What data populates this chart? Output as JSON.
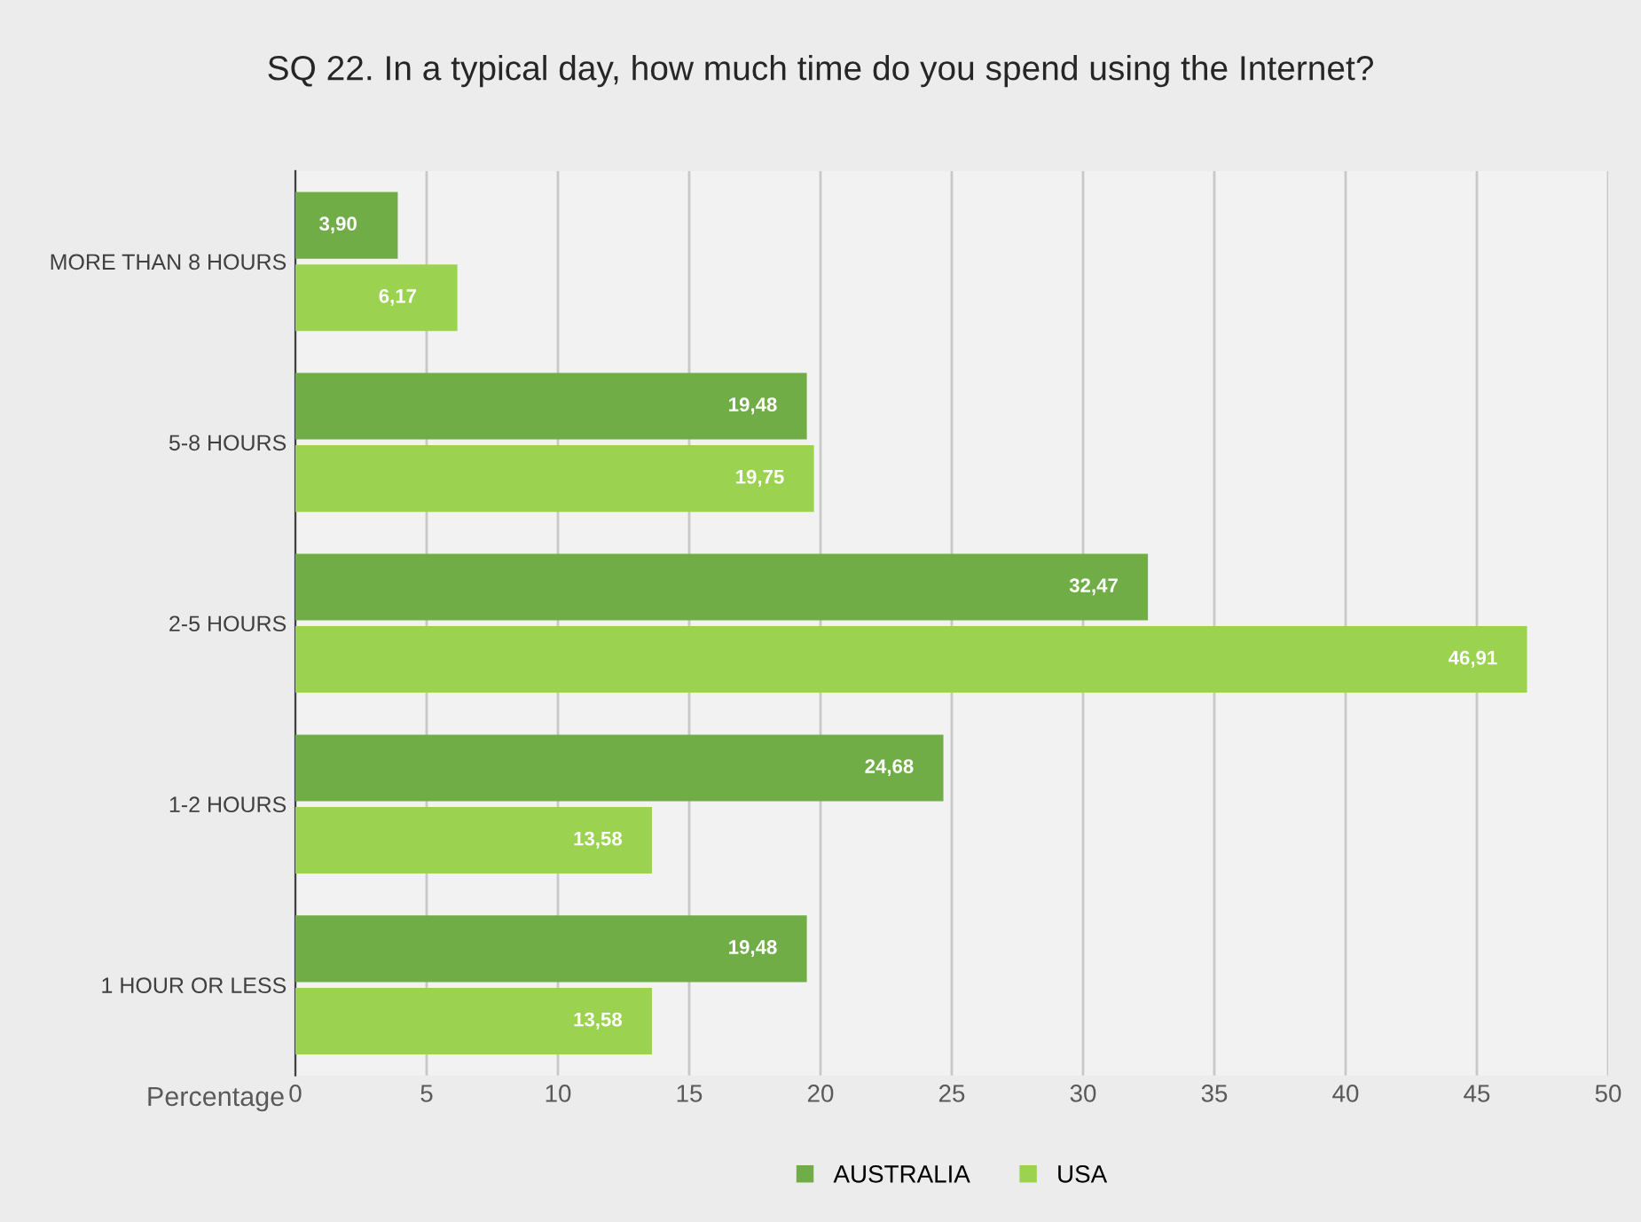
{
  "chart_data": {
    "type": "bar",
    "orientation": "horizontal",
    "title": "SQ 22. In a typical day, how much time do you spend using the Internet?",
    "xlabel": "Percentage",
    "categories": [
      "MORE THAN 8 HOURS",
      "5-8 HOURS",
      "2-5 HOURS",
      "1-2 HOURS",
      "1 HOUR OR LESS"
    ],
    "series": [
      {
        "name": "AUSTRALIA",
        "color": "#70ad47",
        "values": [
          3.9,
          19.48,
          32.47,
          24.68,
          19.48
        ],
        "value_labels": [
          "3,90",
          "19,48",
          "32,47",
          "24,68",
          "19,48"
        ]
      },
      {
        "name": "USA",
        "color": "#9bd24f",
        "values": [
          6.17,
          19.75,
          46.91,
          13.58,
          13.58
        ],
        "value_labels": [
          "6,17",
          "19,75",
          "46,91",
          "13,58",
          "13,58"
        ]
      }
    ],
    "xlim": [
      0,
      50
    ],
    "xticks": [
      0,
      5,
      10,
      15,
      20,
      25,
      30,
      35,
      40,
      45,
      50
    ],
    "grid": "x",
    "legend": "bottom"
  }
}
